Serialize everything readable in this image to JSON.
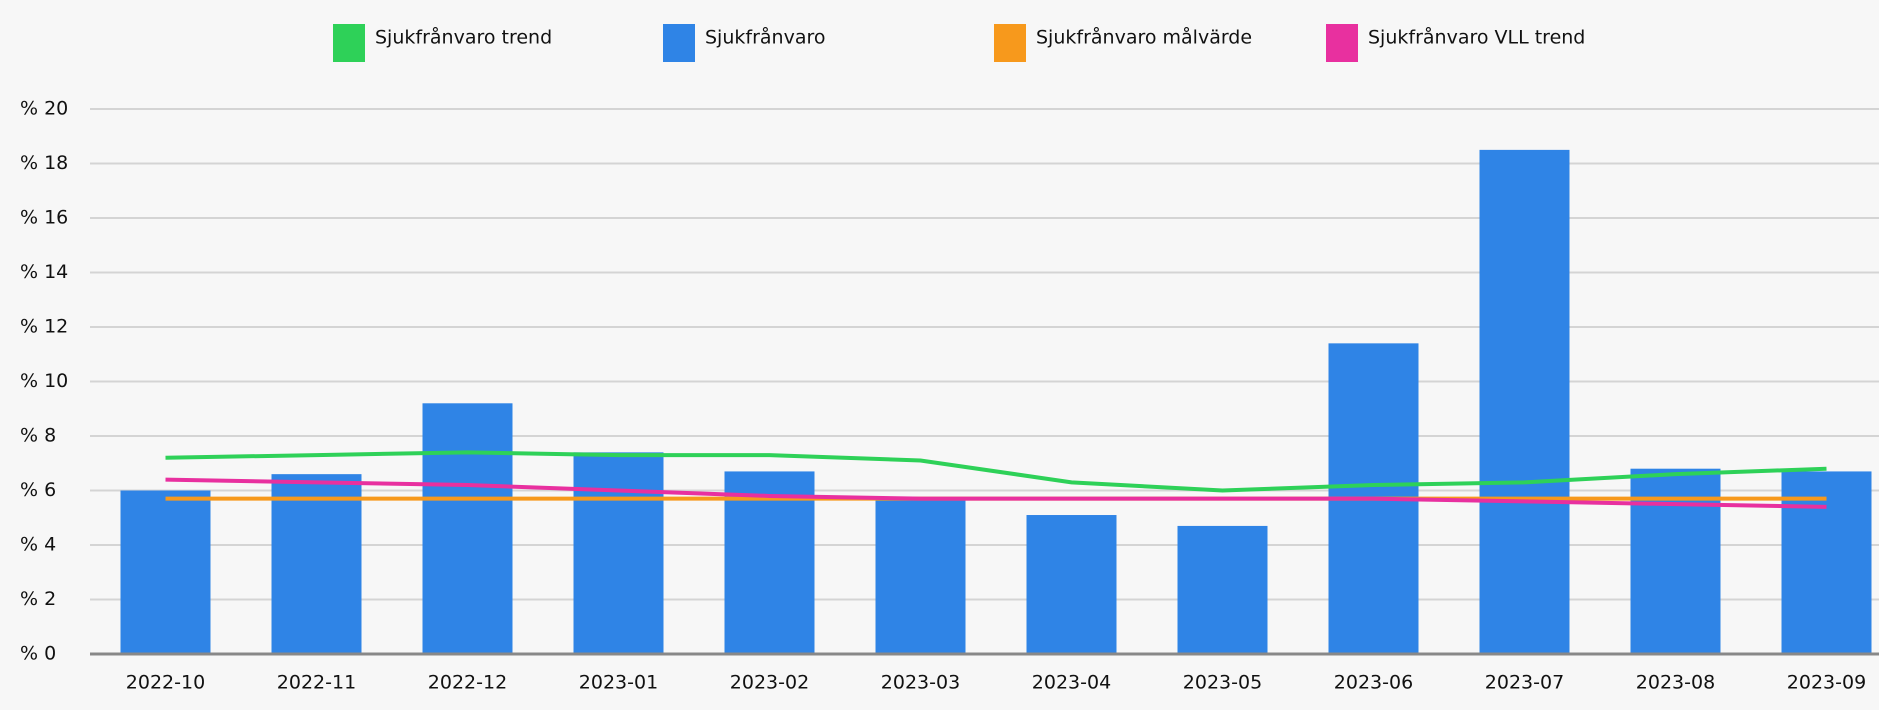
{
  "chart_data": {
    "type": "bar_line",
    "categories": [
      "2022-10",
      "2022-11",
      "2022-12",
      "2023-01",
      "2023-02",
      "2023-03",
      "2023-04",
      "2023-05",
      "2023-06",
      "2023-07",
      "2023-08",
      "2023-09"
    ],
    "series": [
      {
        "name": "Sjukfrånvaro trend",
        "type": "line",
        "color": "#2ed158",
        "values": [
          7.2,
          7.3,
          7.4,
          7.3,
          7.3,
          7.1,
          6.3,
          6.0,
          6.2,
          6.3,
          6.6,
          6.8
        ]
      },
      {
        "name": "Sjukfrånvaro",
        "type": "bar",
        "color": "#2f84e6",
        "values": [
          6.0,
          6.6,
          9.2,
          7.4,
          6.7,
          5.7,
          5.1,
          4.7,
          11.4,
          18.5,
          6.8,
          6.7
        ]
      },
      {
        "name": "Sjukfrånvaro målvärde",
        "type": "line",
        "color": "#f7991c",
        "values": [
          5.7,
          5.7,
          5.7,
          5.7,
          5.7,
          5.7,
          5.7,
          5.7,
          5.7,
          5.7,
          5.7,
          5.7
        ]
      },
      {
        "name": "Sjukfrånvaro VLL trend",
        "type": "line",
        "color": "#e8309f",
        "values": [
          6.4,
          6.3,
          6.2,
          6.0,
          5.8,
          5.7,
          5.7,
          5.7,
          5.7,
          5.6,
          5.5,
          5.4
        ]
      }
    ],
    "ylim": [
      0,
      20
    ],
    "yticks": [
      {
        "value": 0,
        "label": "% 0"
      },
      {
        "value": 2,
        "label": "% 2"
      },
      {
        "value": 4,
        "label": "% 4"
      },
      {
        "value": 6,
        "label": "% 6"
      },
      {
        "value": 8,
        "label": "% 8"
      },
      {
        "value": 10,
        "label": "% 10"
      },
      {
        "value": 12,
        "label": "% 12"
      },
      {
        "value": 14,
        "label": "% 14"
      },
      {
        "value": 16,
        "label": "% 16"
      },
      {
        "value": 18,
        "label": "% 18"
      },
      {
        "value": 20,
        "label": "% 20"
      }
    ],
    "grid": true,
    "legend": "top"
  }
}
